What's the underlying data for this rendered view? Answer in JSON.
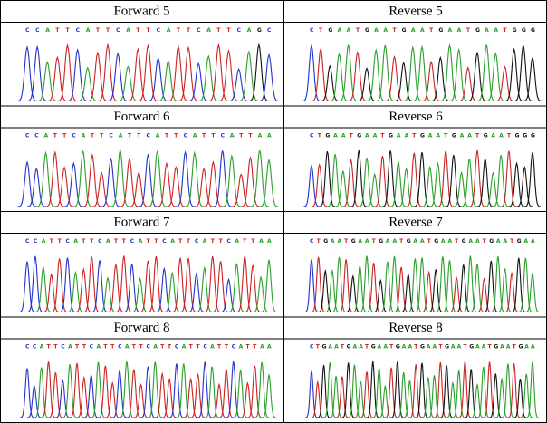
{
  "table": {
    "rows": [
      {
        "left": {
          "header": "Forward 5",
          "sequence": "CCATTCATTCATTCATTCATTCAGC"
        },
        "right": {
          "header": "Reverse 5",
          "sequence": "CTGAATGAATGAATGAATGAATGGG"
        }
      },
      {
        "left": {
          "header": "Forward 6",
          "sequence": "CCATTCATTCATTCATTCATTCATTAA"
        },
        "right": {
          "header": "Reverse 6",
          "sequence": "CTGAATGAATGAATGAATGAATGAATGGG"
        }
      },
      {
        "left": {
          "header": "Forward 7",
          "sequence": "CCATTCATTCATTCATTCATTCATTCATTAA"
        },
        "right": {
          "header": "Reverse 7",
          "sequence": "CTGAATGAATGAATGAATGAATGAATGAATGAA"
        }
      },
      {
        "left": {
          "header": "Forward 8",
          "sequence": "CCATTCATTCATTCATTCATTCATTCATTCATTAA"
        },
        "right": {
          "header": "Reverse 8",
          "sequence": "CTGAATGAATGAATGAATGAATGAATGAATGAATGAA"
        }
      }
    ]
  }
}
